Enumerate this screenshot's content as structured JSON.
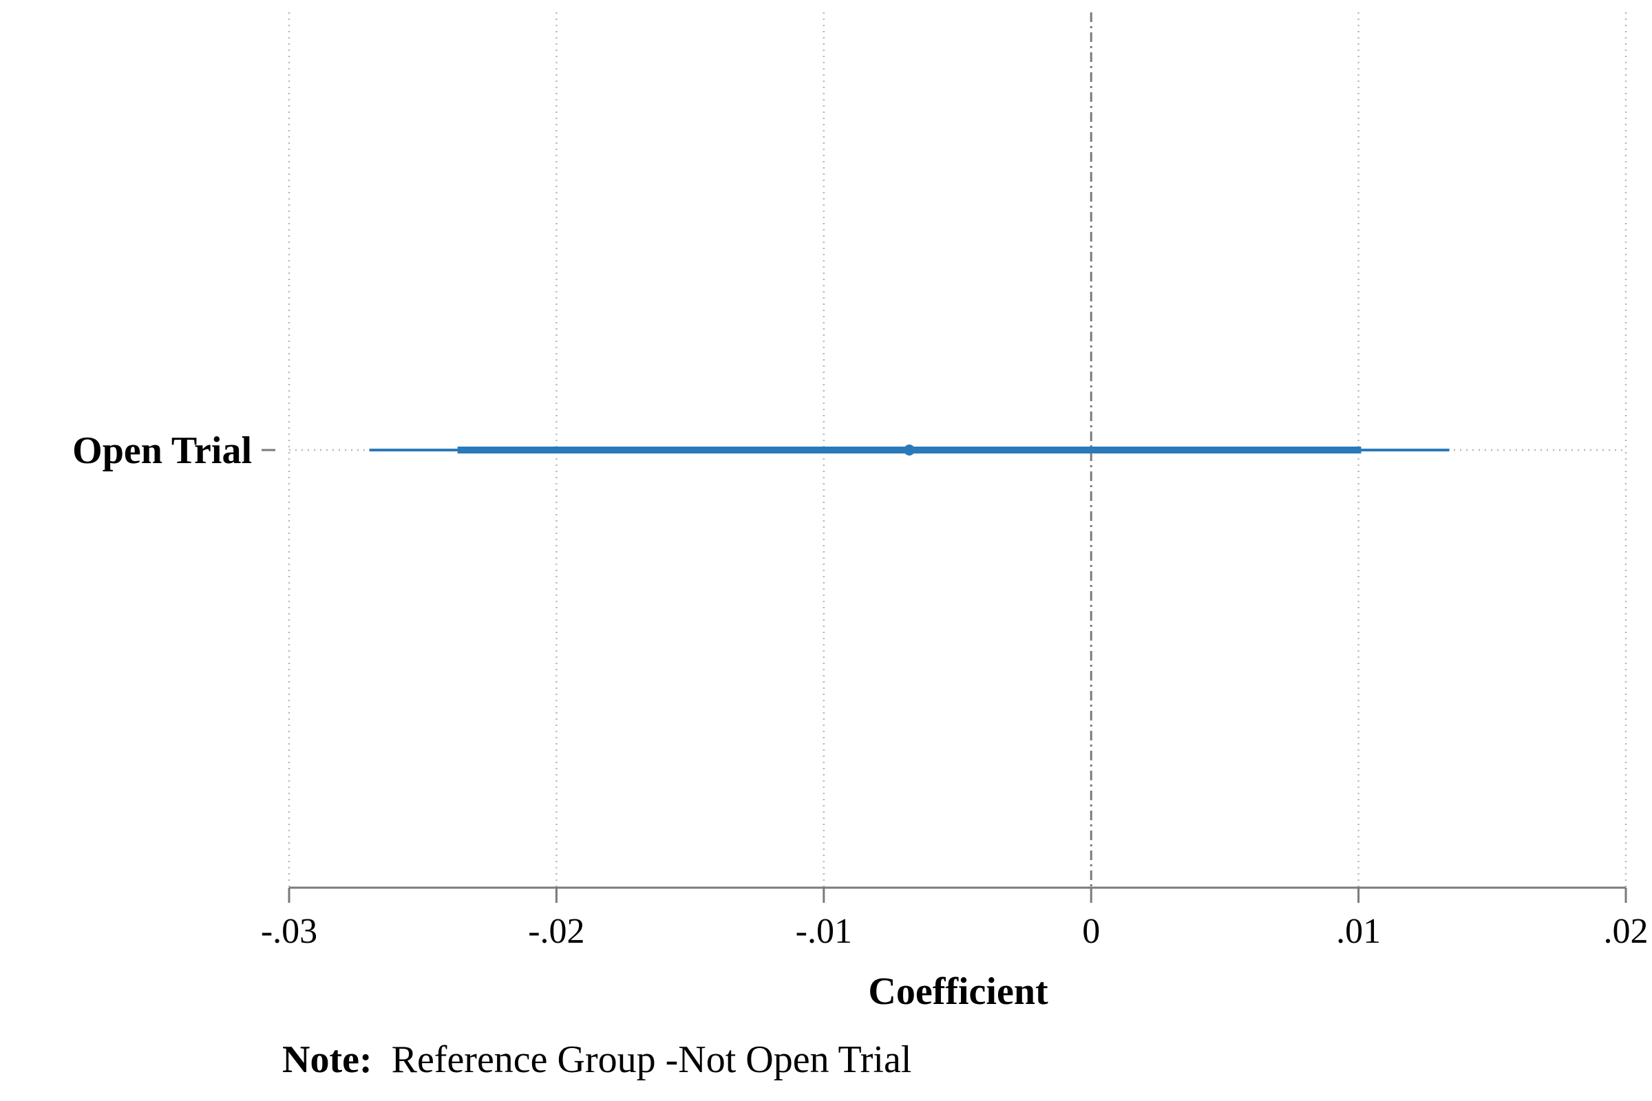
{
  "chart_data": {
    "type": "coefficient-plot",
    "orientation": "horizontal",
    "xlabel": "Coefficient",
    "xlim": [
      -0.03,
      0.02
    ],
    "x_ticks": [
      -0.03,
      -0.02,
      -0.01,
      0,
      0.01,
      0.02
    ],
    "x_tick_labels": [
      "-.03",
      "-.02",
      "-.01",
      "0",
      ".01",
      ".02"
    ],
    "reference_line": 0,
    "grid": true,
    "series_color": "#2a7ab9",
    "coefficients": [
      {
        "label": "Open Trial",
        "estimate": -0.0068,
        "ci_inner": [
          -0.0237,
          0.0101
        ],
        "ci_outer": [
          -0.027,
          0.0134
        ]
      }
    ]
  },
  "note": {
    "label": "Note:",
    "text": "Reference Group -Not Open Trial"
  }
}
